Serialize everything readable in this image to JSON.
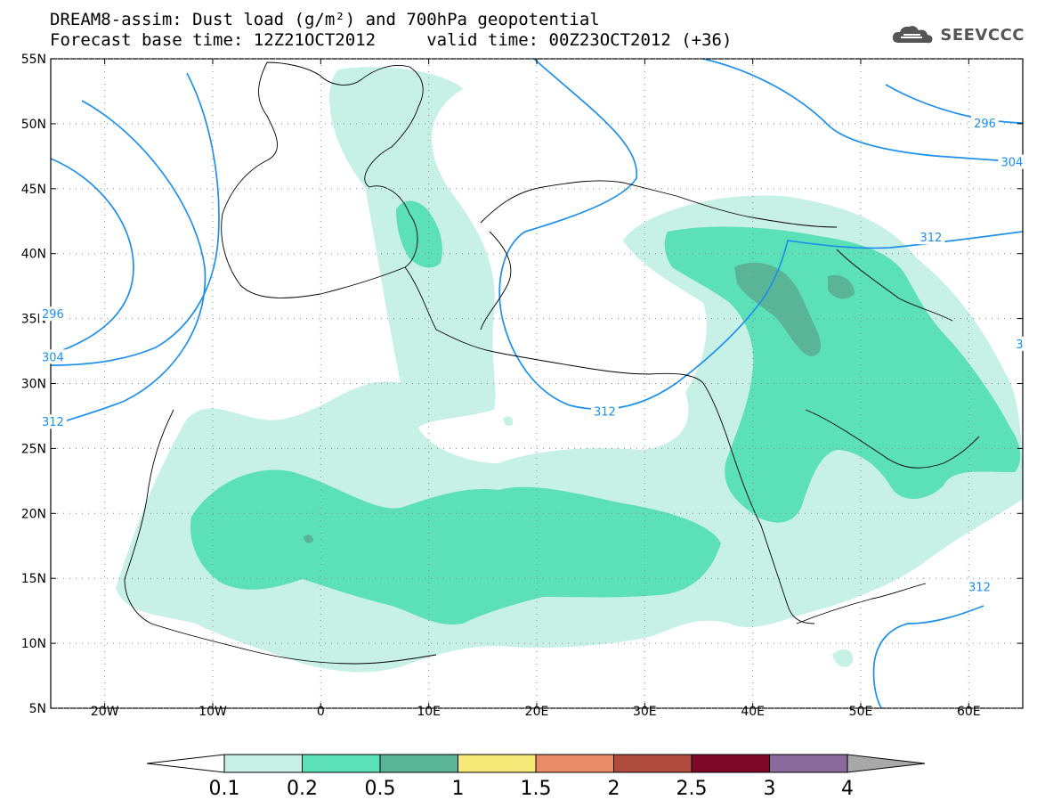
{
  "title": {
    "line1": "DREAM8-assim: Dust load (g/m²) and 700hPa geopotential",
    "line2": "Forecast base time: 12Z21OCT2012     valid time: 00Z23OCT2012 (+36)"
  },
  "logo": {
    "text": "SEEVCCC",
    "icon": "cloud-icon",
    "color": "#555555"
  },
  "axes": {
    "lat_ticks": [
      {
        "value": 55,
        "label": "55N"
      },
      {
        "value": 50,
        "label": "50N"
      },
      {
        "value": 45,
        "label": "45N"
      },
      {
        "value": 40,
        "label": "40N"
      },
      {
        "value": 35,
        "label": "35N"
      },
      {
        "value": 30,
        "label": "30N"
      },
      {
        "value": 25,
        "label": "25N"
      },
      {
        "value": 20,
        "label": "20N"
      },
      {
        "value": 15,
        "label": "15N"
      },
      {
        "value": 10,
        "label": "10N"
      },
      {
        "value": 5,
        "label": "5N"
      }
    ],
    "lon_ticks": [
      {
        "value": -20,
        "label": "20W"
      },
      {
        "value": -10,
        "label": "10W"
      },
      {
        "value": 0,
        "label": "0"
      },
      {
        "value": 10,
        "label": "10E"
      },
      {
        "value": 20,
        "label": "20E"
      },
      {
        "value": 30,
        "label": "30E"
      },
      {
        "value": 40,
        "label": "40E"
      },
      {
        "value": 50,
        "label": "50E"
      },
      {
        "value": 60,
        "label": "60E"
      }
    ],
    "lon_range": [
      -25,
      65
    ],
    "lat_range": [
      5,
      55
    ]
  },
  "contour_labels": [
    {
      "text": "296",
      "lon": 61.5,
      "lat": 50.0
    },
    {
      "text": "304",
      "lon": 64.0,
      "lat": 47.0
    },
    {
      "text": "312",
      "lon": 56.5,
      "lat": 41.2
    },
    {
      "text": "312",
      "lon": 26.3,
      "lat": 27.8
    },
    {
      "text": "312",
      "lon": 61.0,
      "lat": 14.3
    },
    {
      "text": "296",
      "lon": -24.8,
      "lat": 35.3
    },
    {
      "text": "304",
      "lon": -24.8,
      "lat": 32.0
    },
    {
      "text": "312",
      "lon": -24.8,
      "lat": 27.0
    },
    {
      "text": "3",
      "lon": 64.7,
      "lat": 33.0
    }
  ],
  "legend": {
    "bins": [
      {
        "color": "#c7f0e6"
      },
      {
        "color": "#5ce0b8"
      },
      {
        "color": "#5ab596"
      },
      {
        "color": "#f5ea78"
      },
      {
        "color": "#ea8c67"
      },
      {
        "color": "#b04c3e"
      },
      {
        "color": "#7e0828"
      },
      {
        "color": "#8a6a9c"
      }
    ],
    "under_color": "#ffffff",
    "over_color": "#a8a8a8",
    "labels": [
      "0.1",
      "0.2",
      "0.5",
      "1",
      "1.5",
      "2",
      "2.5",
      "3",
      "4"
    ]
  },
  "colors": {
    "dust_low": "#c7f0e6",
    "dust_mid": "#5ce0b8",
    "dust_high": "#5ab596",
    "contour": "#1e90ea",
    "coast": "#000000"
  }
}
